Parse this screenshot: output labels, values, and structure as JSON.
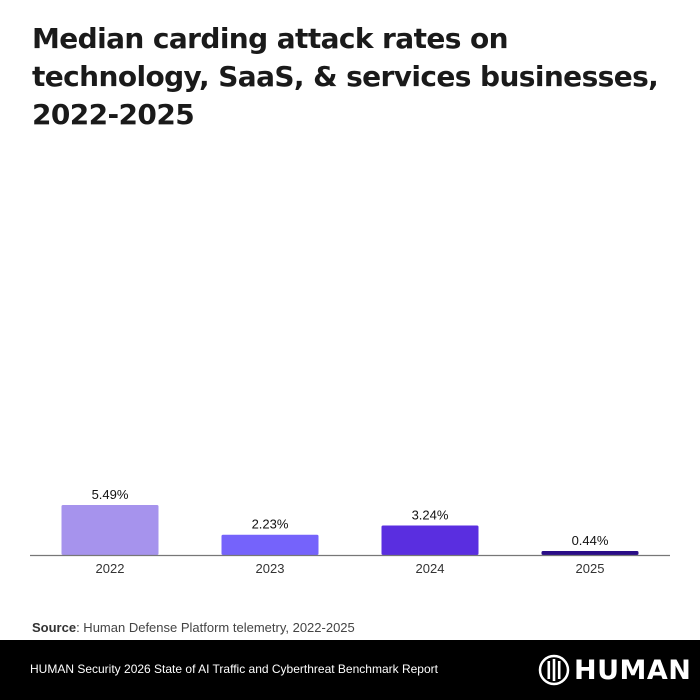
{
  "title": "Median carding attack rates on technology, SaaS, & services businesses, 2022-2025",
  "chart_data": {
    "type": "bar",
    "title": "Median carding attack rates on technology, SaaS, & services businesses, 2022-2025",
    "xlabel": "",
    "ylabel": "",
    "categories": [
      "2022",
      "2023",
      "2024",
      "2025"
    ],
    "values": [
      5.49,
      2.23,
      3.24,
      0.44
    ],
    "value_labels": [
      "5.49%",
      "2.23%",
      "3.24%",
      "0.44%"
    ],
    "colors": [
      "#a693ed",
      "#7563fb",
      "#5a2ee0",
      "#2a0d87"
    ],
    "unit": "%",
    "grid": false,
    "legend": "none"
  },
  "source": {
    "label": "Source",
    "text": ": Human Defense Platform telemetry, 2022-2025"
  },
  "footer": {
    "report": "HUMAN Security 2026 State of AI Traffic and Cyberthreat Benchmark Report",
    "logo_text": "HUMAN"
  }
}
